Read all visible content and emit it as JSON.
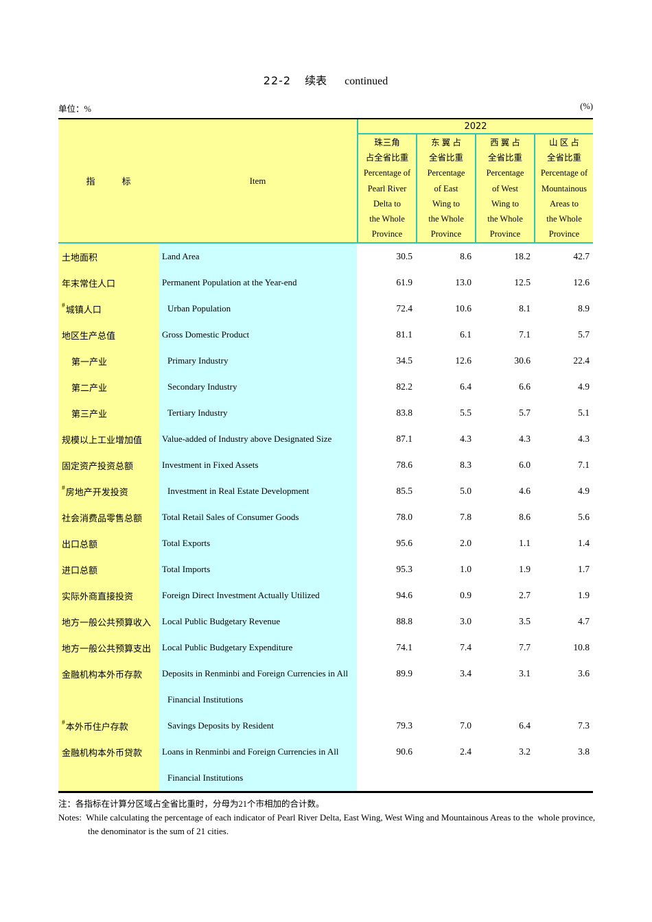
{
  "page": {
    "title_code": "22-2",
    "title_cn": "续表",
    "title_en": "continued",
    "unit_label": "单位：%",
    "unit_right": "(%)"
  },
  "header": {
    "cn": "指　　　标",
    "en": "Item",
    "year": "2022",
    "columns": [
      {
        "lines": [
          "珠三角",
          "占全省比重",
          "Percentage of",
          "Pearl River",
          "Delta to",
          "the Whole",
          "Province"
        ]
      },
      {
        "lines": [
          "东 翼 占",
          "全省比重",
          "Percentage",
          "of East",
          "Wing to",
          "the Whole",
          "Province"
        ]
      },
      {
        "lines": [
          "西 翼 占",
          "全省比重",
          "Percentage",
          "of West",
          "Wing to",
          "the Whole",
          "Province"
        ]
      },
      {
        "lines": [
          "山 区 占",
          "全省比重",
          "Percentage of",
          "Mountainous",
          "Areas to",
          "the Whole",
          "Province"
        ]
      }
    ]
  },
  "rows": [
    {
      "cn": "土地面积",
      "en": "Land Area",
      "v": [
        "30.5",
        "8.6",
        "18.2",
        "42.7"
      ]
    },
    {
      "cn": "年末常住人口",
      "en": "Permanent Population at the Year-end",
      "v": [
        "61.9",
        "13.0",
        "12.5",
        "12.6"
      ]
    },
    {
      "cn": "城镇人口",
      "hash": "#",
      "en": "Urban Population",
      "en_indent": true,
      "v": [
        "72.4",
        "10.6",
        "8.1",
        "8.9"
      ]
    },
    {
      "cn": "地区生产总值",
      "en": "Gross Domestic Product",
      "v": [
        "81.1",
        "6.1",
        "7.1",
        "5.7"
      ]
    },
    {
      "cn": "第一产业",
      "cn_indent": true,
      "en": "Primary Industry",
      "en_indent": true,
      "v": [
        "34.5",
        "12.6",
        "30.6",
        "22.4"
      ]
    },
    {
      "cn": "第二产业",
      "cn_indent": true,
      "en": "Secondary Industry",
      "en_indent": true,
      "v": [
        "82.2",
        "6.4",
        "6.6",
        "4.9"
      ]
    },
    {
      "cn": "第三产业",
      "cn_indent": true,
      "en": "Tertiary Industry",
      "en_indent": true,
      "v": [
        "83.8",
        "5.5",
        "5.7",
        "5.1"
      ]
    },
    {
      "cn": "规模以上工业增加值",
      "en": "Value-added of Industry above Designated Size",
      "v": [
        "87.1",
        "4.3",
        "4.3",
        "4.3"
      ]
    },
    {
      "cn": "固定资产投资总额",
      "en": "Investment in Fixed Assets",
      "v": [
        "78.6",
        "8.3",
        "6.0",
        "7.1"
      ]
    },
    {
      "cn": "房地产开发投资",
      "hash": "#",
      "en": "Investment in Real Estate Development",
      "en_indent": true,
      "v": [
        "85.5",
        "5.0",
        "4.6",
        "4.9"
      ]
    },
    {
      "cn": "社会消费品零售总额",
      "en": "Total Retail Sales of Consumer Goods",
      "v": [
        "78.0",
        "7.8",
        "8.6",
        "5.6"
      ]
    },
    {
      "cn": "出口总额",
      "en": "Total Exports",
      "v": [
        "95.6",
        "2.0",
        "1.1",
        "1.4"
      ]
    },
    {
      "cn": "进口总额",
      "en": "Total Imports",
      "v": [
        "95.3",
        "1.0",
        "1.9",
        "1.7"
      ]
    },
    {
      "cn": "实际外商直接投资",
      "en": "Foreign Direct Investment Actually Utilized",
      "v": [
        "94.6",
        "0.9",
        "2.7",
        "1.9"
      ]
    },
    {
      "cn": "地方一般公共预算收入",
      "en": "Local Public Budgetary Revenue",
      "v": [
        "88.8",
        "3.0",
        "3.5",
        "4.7"
      ]
    },
    {
      "cn": "地方一般公共预算支出",
      "en": "Local Public Budgetary Expenditure",
      "v": [
        "74.1",
        "7.4",
        "7.7",
        "10.8"
      ]
    },
    {
      "cn": "金融机构本外币存款",
      "en": "Deposits in Renminbi and Foreign Currencies in All",
      "en2": "Financial Institutions",
      "v": [
        "89.9",
        "3.4",
        "3.1",
        "3.6"
      ]
    },
    {
      "cn": "本外币住户存款",
      "hash": "#",
      "en": "Savings Deposits by Resident",
      "en_indent": true,
      "v": [
        "79.3",
        "7.0",
        "6.4",
        "7.3"
      ]
    },
    {
      "cn": "金融机构本外币贷款",
      "en": "Loans in Renminbi and Foreign Currencies in All",
      "en2": "Financial Institutions",
      "v": [
        "90.6",
        "2.4",
        "3.2",
        "3.8"
      ]
    }
  ],
  "notes": {
    "cn": "注：各指标在计算分区域占全省比重时，分母为21个市相加的合计数。",
    "en1": "Notes:  While calculating the percentage of each indicator of Pearl River Delta, East Wing, West Wing and Mountainous Areas to the  whole province,",
    "en2": "the denominator is the sum of 21 cities."
  },
  "colors": {
    "label_fill_cn": "#ffff99",
    "label_fill_en": "#ccffff",
    "rule_teal": "#2cc5bd",
    "rule_black": "#000000"
  }
}
